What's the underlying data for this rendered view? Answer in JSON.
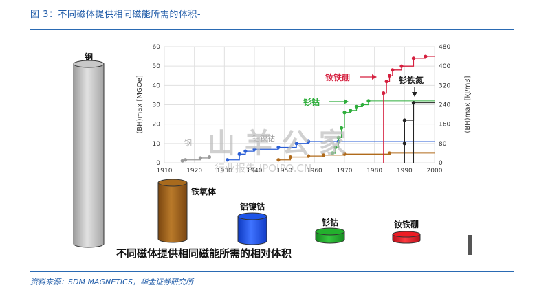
{
  "figure": {
    "title": "图 3：不同磁体提供相同磁能所需的体积-",
    "source": "资料来源：SDM MAGNETICS，华金证券研究所",
    "bottom_caption": "不同磁体提供相同磁能所需的相对体积",
    "watermark": {
      "line1": "山 羊 公 家",
      "line2": "行业报告 IPOIPO.CN"
    }
  },
  "chart_data": {
    "type": "line",
    "xlabel": "",
    "ylabel": "(BH)max [MGOe]",
    "y2label": "(BH)max [kJ/m3]",
    "xlim": [
      1910,
      2000
    ],
    "ylim": [
      0,
      60
    ],
    "y2lim": [
      0,
      480
    ],
    "xticks": [
      1910,
      1920,
      1930,
      1940,
      1950,
      1960,
      1970,
      1980,
      1990,
      2000
    ],
    "yticks": [
      0,
      10,
      20,
      30,
      40,
      50,
      60
    ],
    "y2ticks": [
      0,
      80,
      160,
      240,
      320,
      400,
      480
    ],
    "grid": true,
    "series": [
      {
        "name": "钢",
        "color": "#9a9a9a",
        "points": [
          [
            1916,
            1
          ],
          [
            1917,
            1.5
          ],
          [
            1922,
            2.5
          ],
          [
            1925,
            3
          ]
        ]
      },
      {
        "name": "铁氧体",
        "color": "#b06a1a",
        "points": [
          [
            1948,
            1.5
          ],
          [
            1952,
            3
          ],
          [
            1958,
            3.5
          ],
          [
            1963,
            4
          ],
          [
            1970,
            4.5
          ],
          [
            1985,
            5
          ]
        ]
      },
      {
        "name": "铝镍钴",
        "color": "#2b5fd6",
        "points": [
          [
            1931,
            1.5
          ],
          [
            1935,
            4.5
          ],
          [
            1937,
            6
          ],
          [
            1940,
            7
          ],
          [
            1948,
            8
          ],
          [
            1954,
            10
          ],
          [
            1958,
            11
          ],
          [
            1968,
            11
          ]
        ]
      },
      {
        "name": "钐钴",
        "color": "#2fae3c",
        "points": [
          [
            1966,
            5
          ],
          [
            1967,
            8
          ],
          [
            1968,
            13
          ],
          [
            1969,
            18
          ],
          [
            1970,
            26
          ],
          [
            1972,
            27
          ],
          [
            1974,
            29
          ],
          [
            1976,
            30
          ],
          [
            1978,
            32
          ]
        ]
      },
      {
        "name": "钕铁硼",
        "color": "#d51f3e",
        "points": [
          [
            1983,
            36
          ],
          [
            1984,
            42
          ],
          [
            1985,
            45
          ],
          [
            1986,
            48
          ],
          [
            1989,
            50
          ],
          [
            1993,
            54
          ],
          [
            1997,
            55
          ]
        ]
      },
      {
        "name": "钐铁氮",
        "color": "#222222",
        "points": [
          [
            1990,
            10
          ],
          [
            1990,
            22
          ],
          [
            1993,
            31
          ]
        ]
      }
    ],
    "volumes": [
      {
        "name": "钢",
        "relative_volume": 1.0,
        "color": "#c8c8c8"
      },
      {
        "name": "铁氧体",
        "relative_volume": 0.35,
        "color": "#a86a1d"
      },
      {
        "name": "铝镍钴",
        "relative_volume": 0.13,
        "color": "#1f55e8"
      },
      {
        "name": "钐钴",
        "relative_volume": 0.05,
        "color": "#23b02d"
      },
      {
        "name": "钕铁硼",
        "relative_volume": 0.04,
        "color": "#ee1c24"
      }
    ]
  }
}
